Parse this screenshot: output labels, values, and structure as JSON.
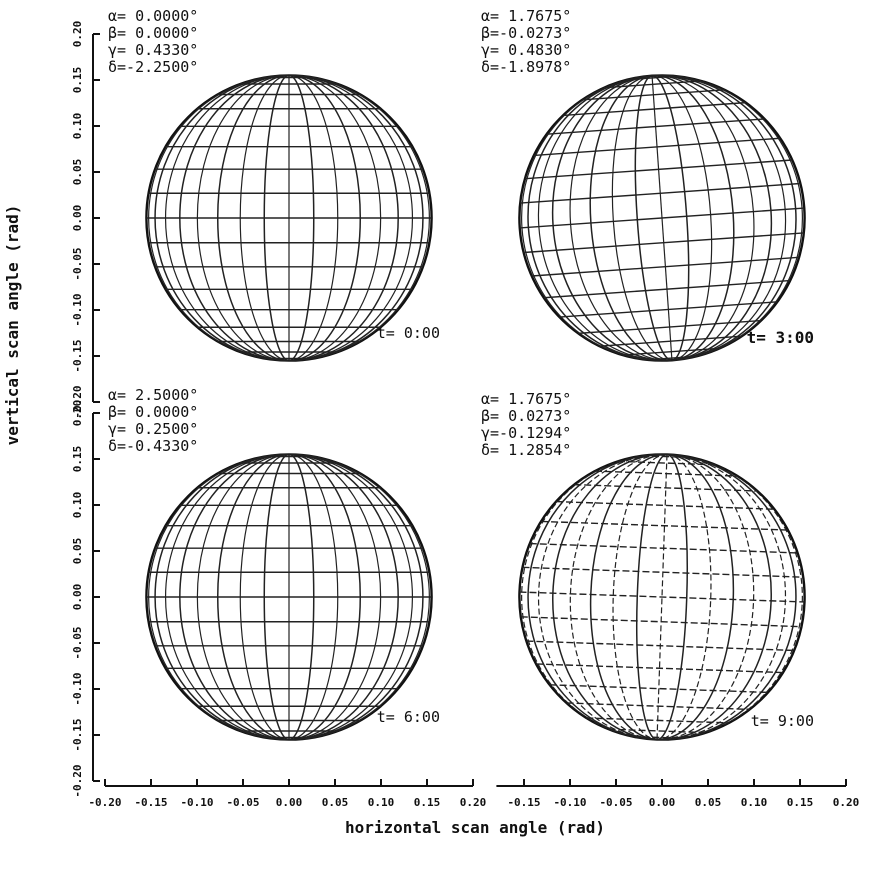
{
  "chart_data": [
    {
      "type": "scatter",
      "panel": "t0",
      "time_label": "t= 0:00",
      "params": [
        "α= 0.0000°",
        "β= 0.0000°",
        "γ= 0.4330°",
        "δ=-2.2500°"
      ],
      "xlim": [
        -0.2,
        0.2
      ],
      "ylim": [
        -0.2,
        0.2
      ],
      "sphere_center": [
        0.0,
        0.0
      ],
      "sphere_radius": 0.155,
      "tilt_deg": 0
    },
    {
      "type": "scatter",
      "panel": "t3",
      "time_label": "t= 3:00",
      "params": [
        "α= 1.7675°",
        "β=-0.0273°",
        "γ= 0.4830°",
        "δ=-1.8978°"
      ],
      "xlim": [
        -0.2,
        0.2
      ],
      "ylim": [
        -0.2,
        0.2
      ],
      "sphere_center": [
        0.0,
        0.0
      ],
      "sphere_radius": 0.155,
      "tilt_deg": -4
    },
    {
      "type": "scatter",
      "panel": "t6",
      "time_label": "t= 6:00",
      "params": [
        "α= 2.5000°",
        "β= 0.0000°",
        "γ= 0.2500°",
        "δ=-0.4330°"
      ],
      "xlim": [
        -0.2,
        0.2
      ],
      "ylim": [
        -0.2,
        0.2
      ],
      "sphere_center": [
        0.0,
        0.0
      ],
      "sphere_radius": 0.155,
      "tilt_deg": 0
    },
    {
      "type": "scatter",
      "panel": "t9",
      "time_label": "t= 9:00",
      "params": [
        "α= 1.7675°",
        "β= 0.0273°",
        "γ=-0.1294°",
        "δ= 1.2854°"
      ],
      "xlim": [
        -0.2,
        0.2
      ],
      "ylim": [
        -0.2,
        0.2
      ],
      "sphere_center": [
        0.0,
        0.0
      ],
      "sphere_radius": 0.155,
      "tilt_deg": 2
    }
  ],
  "axes": {
    "xlabel": "horizontal scan angle (rad)",
    "ylabel": "vertical scan angle (rad)",
    "left_x_ticks": [
      "-0.20",
      "-0.15",
      "-0.10",
      "-0.05",
      "0.00",
      "0.05",
      "0.10",
      "0.15",
      "0.20"
    ],
    "right_x_ticks": [
      "-0.15",
      "-0.10",
      "-0.05",
      "0.00",
      "0.05",
      "0.10",
      "0.15",
      "0.20"
    ],
    "top_y_ticks": [
      "0.20",
      "0.15",
      "0.10",
      "0.05",
      "0.00",
      "-0.05",
      "-0.10",
      "-0.15",
      "-0.20"
    ],
    "bottom_y_ticks": [
      "0.20",
      "0.15",
      "0.10",
      "0.05",
      "0.00",
      "-0.05",
      "-0.10",
      "-0.15",
      "-0.20"
    ]
  }
}
